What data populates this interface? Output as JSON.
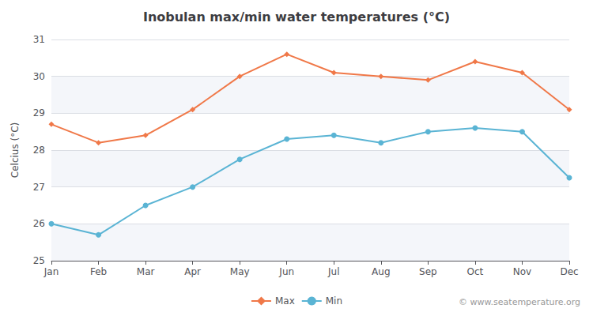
{
  "chart_data": {
    "type": "line",
    "title": "Inobulan max/min water temperatures (°C)",
    "ylabel": "Celcius (°C)",
    "categories": [
      "Jan",
      "Feb",
      "Mar",
      "Apr",
      "May",
      "Jun",
      "Jul",
      "Aug",
      "Sep",
      "Oct",
      "Nov",
      "Dec"
    ],
    "series": [
      {
        "name": "Max",
        "color": "#f07848",
        "marker": "diamond",
        "values": [
          28.7,
          28.2,
          28.4,
          29.1,
          30.0,
          30.6,
          30.1,
          30.0,
          29.9,
          30.4,
          30.1,
          29.1
        ]
      },
      {
        "name": "Min",
        "color": "#5ab4d4",
        "marker": "circle",
        "values": [
          26.0,
          25.7,
          26.5,
          27.0,
          27.75,
          28.3,
          28.4,
          28.2,
          28.5,
          28.6,
          28.5,
          27.25
        ]
      }
    ],
    "ylim": [
      25,
      31
    ],
    "yticks": [
      25,
      26,
      27,
      28,
      29,
      30,
      31
    ],
    "grid": true,
    "legend": "bottom",
    "annotations": [
      "© www.seatemperature.org"
    ]
  }
}
